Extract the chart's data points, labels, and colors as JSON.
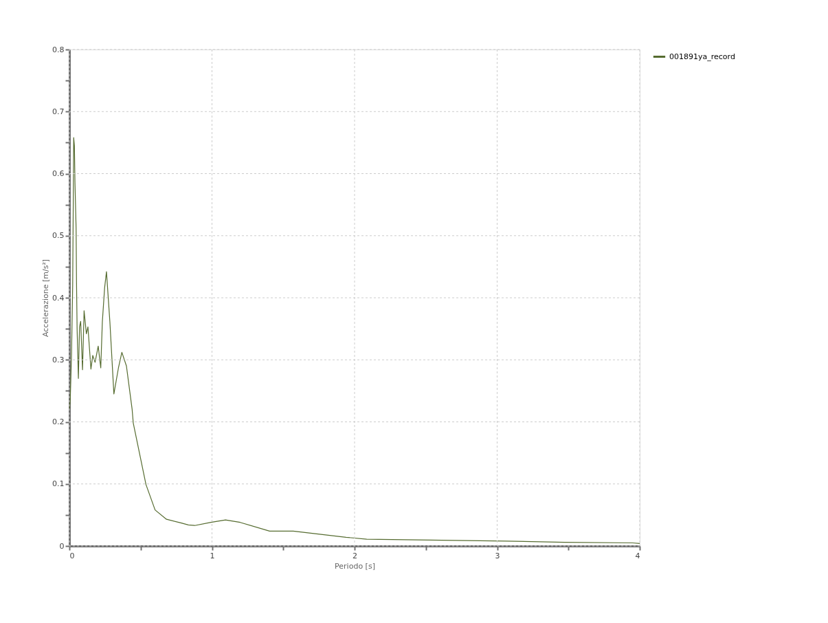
{
  "chart_data": {
    "type": "line",
    "xlabel": "Periodo [s]",
    "ylabel": "Accelerazione [m/s²]",
    "xlim": [
      0,
      4
    ],
    "ylim": [
      0,
      0.8
    ],
    "xticks": [
      0,
      {
        "value": 0.5,
        "label": null
      },
      1,
      {
        "value": 1.5,
        "label": null
      },
      2,
      {
        "value": 2.5,
        "label": null
      },
      3,
      {
        "value": 3.5,
        "label": null
      },
      4
    ],
    "yticks": [
      0,
      {
        "value": 0.05,
        "label": null
      },
      0.1,
      {
        "value": 0.15,
        "label": null
      },
      0.2,
      {
        "value": 0.25,
        "label": null
      },
      0.3,
      {
        "value": 0.35,
        "label": null
      },
      0.4,
      {
        "value": 0.45,
        "label": null
      },
      0.5,
      {
        "value": 0.55,
        "label": null
      },
      0.6,
      {
        "value": 0.65,
        "label": null
      },
      0.7,
      {
        "value": 0.75,
        "label": null
      },
      0.8
    ],
    "grid": true,
    "legend": "right",
    "series": [
      {
        "name": "001891ya_record",
        "color": "#556b2f",
        "x": [
          0,
          0.006,
          0.015,
          0.023,
          0.027,
          0.03,
          0.035,
          0.039,
          0.047,
          0.05,
          0.054,
          0.063,
          0.071,
          0.079,
          0.092,
          0.103,
          0.119,
          0.13,
          0.151,
          0.164,
          0.18,
          0.202,
          0.22,
          0.231,
          0.247,
          0.26,
          0.284,
          0.312,
          0.344,
          0.368,
          0.4,
          0.44,
          0.448,
          0.537,
          0.601,
          0.681,
          0.786,
          0.834,
          0.879,
          0.992,
          1.095,
          1.198,
          1.404,
          1.57,
          1.94,
          2.085,
          3.055,
          3.47,
          3.95,
          4.0
        ],
        "values": [
          0.22,
          0.235,
          0.31,
          0.42,
          0.55,
          0.658,
          0.645,
          0.586,
          0.512,
          0.423,
          0.35,
          0.27,
          0.353,
          0.362,
          0.284,
          0.379,
          0.342,
          0.353,
          0.285,
          0.307,
          0.296,
          0.322,
          0.287,
          0.361,
          0.416,
          0.442,
          0.361,
          0.245,
          0.287,
          0.312,
          0.29,
          0.22,
          0.198,
          0.099,
          0.058,
          0.043,
          0.037,
          0.034,
          0.033,
          0.038,
          0.042,
          0.038,
          0.024,
          0.024,
          0.014,
          0.011,
          0.008,
          0.006,
          0.005,
          0.004
        ]
      }
    ]
  }
}
